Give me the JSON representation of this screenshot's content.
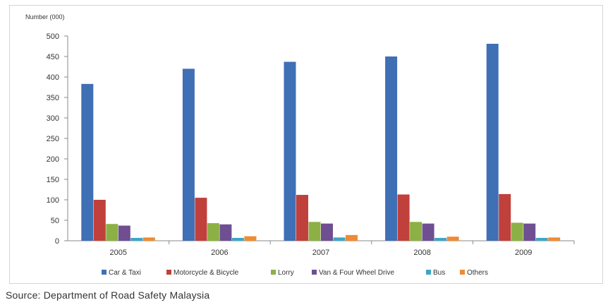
{
  "chart_data": {
    "type": "bar",
    "ylabel": "Number (000)",
    "xlabel": "",
    "ylim": [
      0,
      500
    ],
    "yticks": [
      "0",
      "50",
      "100",
      "150",
      "200",
      "250",
      "300",
      "350",
      "400",
      "450",
      "500"
    ],
    "grid": false,
    "legend_position": "bottom",
    "categories": [
      "2005",
      "2006",
      "2007",
      "2008",
      "2009"
    ],
    "series": [
      {
        "name": "Car & Taxi",
        "color": "#3f6fb5",
        "values": [
          383,
          420,
          437,
          450,
          481
        ]
      },
      {
        "name": "Motorcycle & Bicycle",
        "color": "#c0403c",
        "values": [
          100,
          105,
          112,
          113,
          114
        ]
      },
      {
        "name": "Lorry",
        "color": "#8db046",
        "values": [
          41,
          43,
          46,
          46,
          44
        ]
      },
      {
        "name": "Van & Four Wheel Drive",
        "color": "#6f4f92",
        "values": [
          37,
          40,
          42,
          42,
          42
        ]
      },
      {
        "name": "Bus",
        "color": "#3ea6c6",
        "values": [
          7,
          7,
          8,
          7,
          7
        ]
      },
      {
        "name": "Others",
        "color": "#ef8b34",
        "values": [
          8,
          11,
          14,
          10,
          8
        ]
      }
    ]
  },
  "source_text": "Source: Department of Road Safety Malaysia"
}
